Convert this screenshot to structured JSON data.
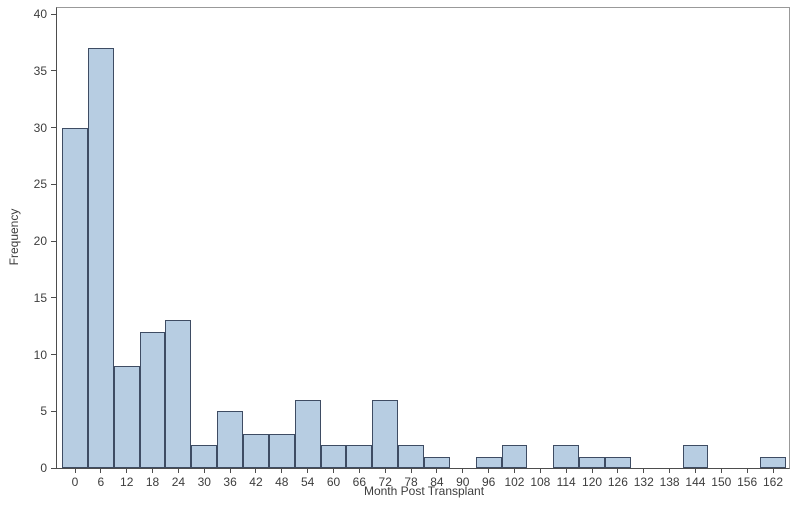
{
  "chart_data": {
    "type": "bar",
    "title": "",
    "xlabel": "Month Post Transplant",
    "ylabel": "Frequency",
    "categories": [
      0,
      6,
      12,
      18,
      24,
      30,
      36,
      42,
      48,
      54,
      60,
      66,
      72,
      78,
      84,
      90,
      96,
      102,
      108,
      114,
      120,
      126,
      132,
      138,
      144,
      150,
      156,
      162
    ],
    "values": [
      30,
      37,
      9,
      12,
      13,
      2,
      5,
      3,
      3,
      6,
      2,
      2,
      6,
      2,
      1,
      0,
      1,
      2,
      0,
      2,
      1,
      1,
      0,
      0,
      2,
      0,
      0,
      1
    ],
    "yticks": [
      0,
      5,
      10,
      15,
      20,
      25,
      30,
      35,
      40
    ],
    "ylim": [
      0,
      40
    ],
    "grid": "off",
    "legend": "none",
    "colors": {
      "bar_fill": "#b7cde2",
      "bar_border": "#3e4c63",
      "axis_line": "#4d4d4d",
      "frame_line": "#999999",
      "label_text": "#3d3d3d",
      "background": "#ffffff"
    }
  }
}
